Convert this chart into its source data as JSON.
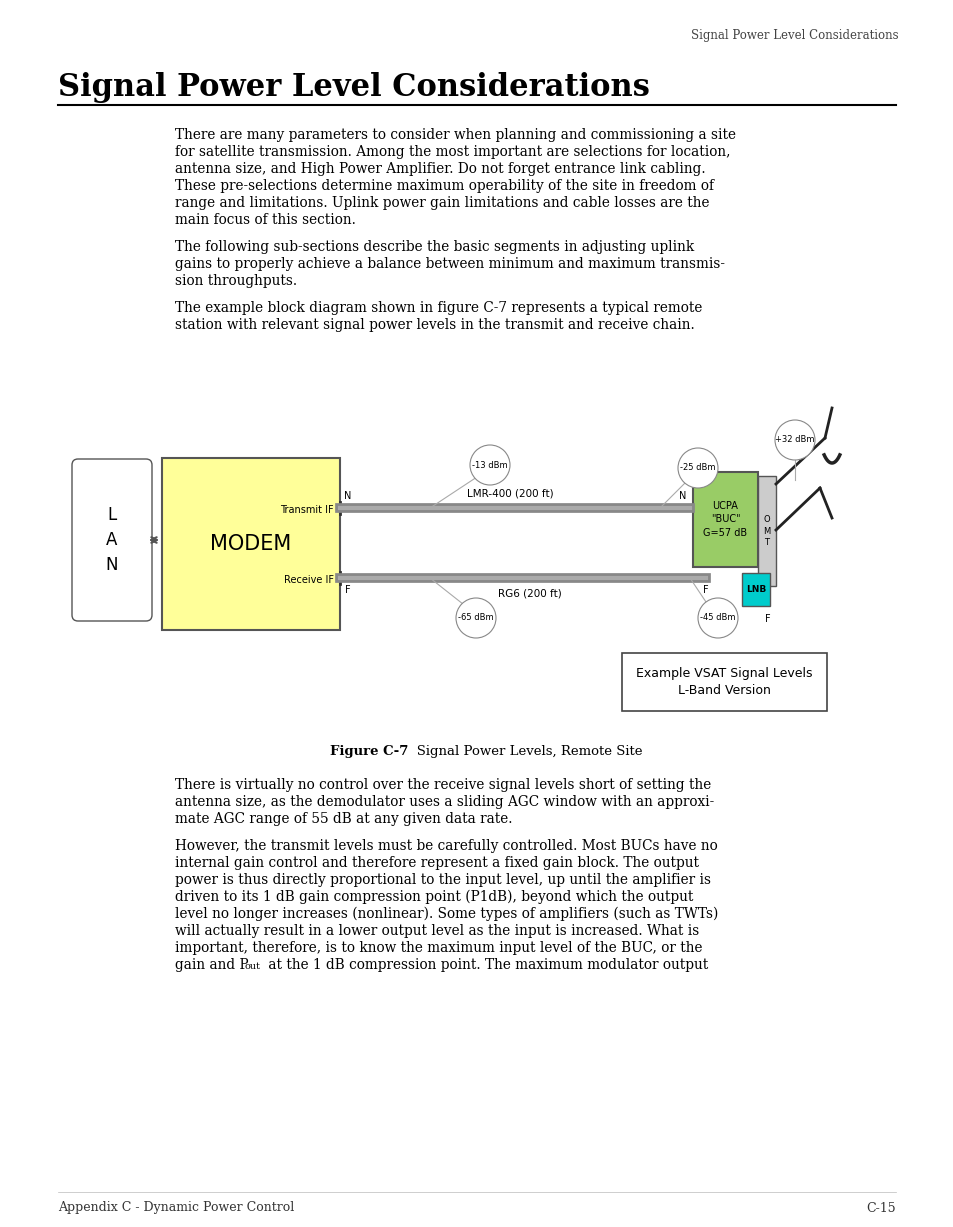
{
  "page_header": "Signal Power Level Considerations",
  "title": "Signal Power Level Considerations",
  "footer_left": "Appendix C - Dynamic Power Control",
  "footer_right": "C-15",
  "background_color": "#ffffff",
  "text_color": "#000000",
  "modem_fill": "#ffff99",
  "buc_fill": "#99cc66",
  "lnb_fill": "#00cccc",
  "omt_fill": "#cccccc",
  "lan_fill": "#ffffff",
  "diagram": {
    "transmit_if": "Transmit IF",
    "receive_if": "Receive IF",
    "lmr_label": "LMR-400 (200 ft)",
    "rg6_label": "RG6 (200 ft)",
    "buc_label": "UCPA\n\"BUC\"\nG=57 dB",
    "lnb_label": "LNB",
    "omt_label": "O\nM\nT",
    "level_13": "-13 dBm",
    "level_25": "-25 dBm",
    "level_32": "+32 dBm",
    "level_65": "-65 dBm",
    "level_45": "-45 dBm",
    "example_box_line1": "Example VSAT Signal Levels",
    "example_box_line2": "L-Band Version"
  },
  "para1_lines": [
    "There are many parameters to consider when planning and commissioning a site",
    "for satellite transmission. Among the most important are selections for location,",
    "antenna size, and High Power Amplifier. Do not forget entrance link cabling.",
    "These pre-selections determine maximum operability of the site in freedom of",
    "range and limitations. Uplink power gain limitations and cable losses are the",
    "main focus of this section."
  ],
  "para2_lines": [
    "The following sub-sections describe the basic segments in adjusting uplink",
    "gains to properly achieve a balance between minimum and maximum transmis-",
    "sion throughputs."
  ],
  "para3_lines": [
    "The example block diagram shown in figure C-7 represents a typical remote",
    "station with relevant signal power levels in the transmit and receive chain."
  ],
  "para4_lines": [
    "There is virtually no control over the receive signal levels short of setting the",
    "antenna size, as the demodulator uses a sliding AGC window with an approxi-",
    "mate AGC range of 55 dB at any given data rate."
  ],
  "para5_lines": [
    "However, the transmit levels must be carefully controlled. Most BUCs have no",
    "internal gain control and therefore represent a fixed gain block. The output",
    "power is thus directly proportional to the input level, up until the amplifier is",
    "driven to its 1 dB gain compression point (P1dB), beyond which the output",
    "level no longer increases (nonlinear). Some types of amplifiers (such as TWTs)",
    "will actually result in a lower output level as the input is increased. What is",
    "important, therefore, is to know the maximum input level of the BUC, or the"
  ],
  "para5_last_pre": "gain and P",
  "para5_sub": "out",
  "para5_last_post": " at the 1 dB compression point. The maximum modulator output",
  "figure_caption_bold": "Figure C-7",
  "figure_caption_normal": "   Signal Power Levels, Remote Site"
}
